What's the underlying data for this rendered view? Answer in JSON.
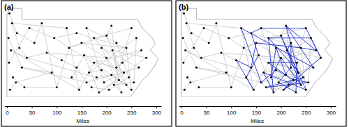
{
  "chart_data": [
    {
      "type": "network",
      "title": "(a)",
      "xlabel": "Miles",
      "xlim": [
        -5,
        310
      ],
      "xticks": [
        0,
        50,
        100,
        150,
        200,
        250,
        300
      ],
      "ylim": [
        0,
        190
      ],
      "tick_labels": "x",
      "color": "#000000",
      "x": [
        5,
        10,
        3,
        8,
        4,
        12,
        6,
        20,
        25,
        30,
        18,
        35,
        40,
        45,
        55,
        70,
        80,
        90,
        95,
        100,
        110,
        120,
        125,
        130,
        140,
        145,
        150,
        155,
        160,
        165,
        170,
        175,
        180,
        185,
        190,
        195,
        200,
        205,
        210,
        215,
        220,
        225,
        230,
        235,
        240,
        245,
        250,
        255,
        232,
        212,
        190,
        175,
        200,
        220,
        240,
        260,
        270,
        280,
        265,
        250,
        210,
        160,
        140
      ],
      "y": [
        170,
        150,
        120,
        95,
        70,
        40,
        15,
        130,
        100,
        60,
        30,
        20,
        80,
        140,
        110,
        150,
        90,
        50,
        120,
        20,
        75,
        140,
        100,
        40,
        60,
        15,
        110,
        85,
        30,
        50,
        20,
        70,
        40,
        10,
        55,
        30,
        80,
        15,
        45,
        25,
        60,
        35,
        10,
        50,
        25,
        40,
        15,
        30,
        70,
        95,
        100,
        120,
        125,
        110,
        100,
        120,
        95,
        80,
        60,
        140,
        145,
        140,
        130
      ],
      "series": [
        {
          "color": "#bdbdbd",
          "edges": [
            [
              0,
              7
            ],
            [
              7,
              14
            ],
            [
              14,
              15
            ],
            [
              1,
              8
            ],
            [
              8,
              12
            ],
            [
              12,
              16
            ],
            [
              16,
              20
            ],
            [
              2,
              9
            ],
            [
              9,
              17
            ],
            [
              3,
              12
            ],
            [
              4,
              13
            ],
            [
              13,
              18
            ],
            [
              5,
              11
            ],
            [
              11,
              19
            ],
            [
              6,
              10
            ],
            [
              10,
              17
            ],
            [
              15,
              19
            ],
            [
              19,
              22
            ],
            [
              22,
              26
            ],
            [
              20,
              24
            ],
            [
              24,
              28
            ],
            [
              21,
              25
            ],
            [
              25,
              31
            ],
            [
              23,
              27
            ],
            [
              27,
              33
            ],
            [
              26,
              36
            ],
            [
              28,
              30
            ],
            [
              29,
              34
            ],
            [
              30,
              37
            ],
            [
              31,
              40
            ],
            [
              32,
              38
            ],
            [
              33,
              41
            ],
            [
              34,
              42
            ],
            [
              35,
              43
            ],
            [
              36,
              44
            ],
            [
              37,
              45
            ],
            [
              38,
              46
            ],
            [
              39,
              47
            ],
            [
              40,
              48
            ],
            [
              41,
              49
            ],
            [
              42,
              50
            ],
            [
              43,
              51
            ],
            [
              44,
              52
            ],
            [
              45,
              53
            ],
            [
              46,
              54
            ],
            [
              47,
              55
            ],
            [
              48,
              56
            ],
            [
              49,
              57
            ],
            [
              50,
              58
            ],
            [
              51,
              59
            ],
            [
              52,
              60
            ],
            [
              53,
              61
            ],
            [
              54,
              62
            ],
            [
              55,
              29
            ],
            [
              56,
              31
            ],
            [
              57,
              33
            ],
            [
              58,
              28
            ],
            [
              59,
              39
            ],
            [
              60,
              40
            ],
            [
              61,
              35
            ],
            [
              62,
              18
            ],
            [
              1,
              21
            ],
            [
              3,
              25
            ],
            [
              18,
              44
            ],
            [
              22,
              52
            ],
            [
              26,
              54
            ],
            [
              27,
              43
            ],
            [
              12,
              32
            ],
            [
              16,
              36
            ],
            [
              9,
              28
            ]
          ]
        }
      ]
    },
    {
      "type": "network",
      "title": "(b)",
      "xlabel": "Miles",
      "xlim": [
        -5,
        310
      ],
      "xticks": [
        0,
        50,
        100,
        150,
        200,
        250,
        300
      ],
      "ylim": [
        0,
        190
      ],
      "tick_labels": "x",
      "color": "#000000",
      "x": [
        5,
        10,
        3,
        8,
        4,
        12,
        6,
        20,
        25,
        30,
        18,
        35,
        40,
        45,
        55,
        70,
        80,
        90,
        95,
        100,
        110,
        120,
        125,
        130,
        140,
        145,
        150,
        155,
        160,
        165,
        170,
        175,
        180,
        185,
        190,
        195,
        200,
        205,
        210,
        215,
        220,
        225,
        230,
        235,
        240,
        245,
        250,
        255,
        232,
        212,
        190,
        175,
        200,
        220,
        240,
        260,
        270,
        280,
        265,
        250,
        210,
        160,
        140
      ],
      "y": [
        170,
        150,
        120,
        95,
        70,
        40,
        15,
        130,
        100,
        60,
        30,
        20,
        80,
        140,
        110,
        150,
        90,
        50,
        120,
        20,
        75,
        140,
        100,
        40,
        60,
        15,
        110,
        85,
        30,
        50,
        20,
        70,
        40,
        10,
        55,
        30,
        80,
        15,
        45,
        25,
        60,
        35,
        10,
        50,
        25,
        40,
        15,
        30,
        70,
        95,
        100,
        120,
        125,
        110,
        100,
        120,
        95,
        80,
        60,
        140,
        145,
        140,
        130
      ],
      "series": [
        {
          "color": "#bdbdbd",
          "edges": [
            [
              0,
              7
            ],
            [
              7,
              14
            ],
            [
              14,
              15
            ],
            [
              1,
              8
            ],
            [
              8,
              12
            ],
            [
              12,
              16
            ],
            [
              16,
              20
            ],
            [
              2,
              9
            ],
            [
              9,
              17
            ],
            [
              3,
              12
            ],
            [
              4,
              13
            ],
            [
              13,
              18
            ],
            [
              5,
              11
            ],
            [
              11,
              19
            ],
            [
              6,
              10
            ],
            [
              10,
              17
            ],
            [
              15,
              19
            ],
            [
              19,
              22
            ],
            [
              22,
              26
            ],
            [
              20,
              24
            ],
            [
              24,
              28
            ],
            [
              21,
              25
            ],
            [
              25,
              31
            ],
            [
              23,
              27
            ],
            [
              27,
              33
            ],
            [
              26,
              36
            ],
            [
              28,
              30
            ],
            [
              29,
              34
            ],
            [
              30,
              37
            ],
            [
              31,
              40
            ],
            [
              32,
              38
            ],
            [
              33,
              41
            ],
            [
              34,
              42
            ],
            [
              35,
              43
            ],
            [
              36,
              44
            ],
            [
              37,
              45
            ],
            [
              38,
              46
            ],
            [
              39,
              47
            ],
            [
              40,
              48
            ],
            [
              41,
              49
            ],
            [
              42,
              50
            ],
            [
              43,
              51
            ],
            [
              44,
              52
            ],
            [
              45,
              53
            ],
            [
              46,
              54
            ],
            [
              47,
              55
            ],
            [
              48,
              56
            ],
            [
              49,
              57
            ],
            [
              50,
              58
            ],
            [
              51,
              59
            ],
            [
              52,
              60
            ],
            [
              53,
              61
            ],
            [
              54,
              62
            ],
            [
              55,
              29
            ],
            [
              56,
              31
            ],
            [
              57,
              33
            ],
            [
              58,
              28
            ],
            [
              59,
              39
            ],
            [
              60,
              40
            ],
            [
              61,
              35
            ],
            [
              62,
              18
            ],
            [
              1,
              21
            ],
            [
              3,
              25
            ],
            [
              18,
              44
            ],
            [
              22,
              52
            ],
            [
              26,
              54
            ],
            [
              27,
              43
            ],
            [
              12,
              32
            ],
            [
              16,
              36
            ],
            [
              9,
              28
            ]
          ]
        },
        {
          "color": "#1f2fd0",
          "edges": [
            [
              28,
              34
            ],
            [
              34,
              41
            ],
            [
              41,
              47
            ],
            [
              47,
              39
            ],
            [
              39,
              30
            ],
            [
              30,
              45
            ],
            [
              45,
              37
            ],
            [
              37,
              43
            ],
            [
              43,
              49
            ],
            [
              49,
              53
            ],
            [
              53,
              40
            ],
            [
              40,
              35
            ],
            [
              35,
              42
            ],
            [
              42,
              48
            ],
            [
              48,
              31
            ],
            [
              31,
              38
            ],
            [
              38,
              50
            ],
            [
              50,
              32
            ],
            [
              32,
              36
            ],
            [
              36,
              44
            ],
            [
              44,
              52
            ],
            [
              52,
              46
            ],
            [
              46,
              29
            ],
            [
              29,
              33
            ],
            [
              33,
              51
            ],
            [
              51,
              55
            ],
            [
              55,
              57
            ],
            [
              57,
              59
            ],
            [
              59,
              61
            ],
            [
              61,
              62
            ],
            [
              62,
              27
            ],
            [
              27,
              23
            ],
            [
              23,
              25
            ],
            [
              25,
              20
            ],
            [
              20,
              24
            ],
            [
              24,
              26
            ],
            [
              26,
              54
            ],
            [
              54,
              56
            ],
            [
              56,
              60
            ],
            [
              60,
              58
            ],
            [
              58,
              21
            ],
            [
              21,
              28
            ],
            [
              37,
              57
            ],
            [
              45,
              51
            ],
            [
              43,
              60
            ]
          ]
        }
      ]
    }
  ]
}
